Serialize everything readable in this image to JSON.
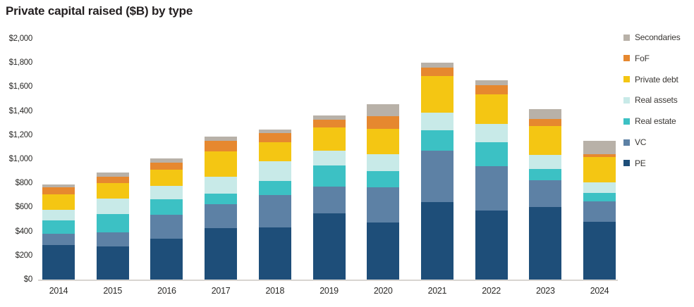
{
  "chart_data": {
    "type": "bar",
    "variant": "stacked-vertical",
    "title": "Private capital raised ($B) by type",
    "xlabel": "",
    "ylabel": "",
    "ylim": [
      0,
      2000
    ],
    "grid": false,
    "legend_position": "right",
    "categories": [
      "2014",
      "2015",
      "2016",
      "2017",
      "2018",
      "2019",
      "2020",
      "2021",
      "2022",
      "2023",
      "2024"
    ],
    "series": [
      {
        "name": "PE",
        "color": "#1e4e79",
        "values": [
          285,
          275,
          340,
          425,
          430,
          550,
          475,
          645,
          575,
          600,
          480
        ]
      },
      {
        "name": "VC",
        "color": "#5d81a5",
        "values": [
          95,
          115,
          200,
          200,
          270,
          220,
          290,
          425,
          365,
          225,
          170
        ]
      },
      {
        "name": "Real estate",
        "color": "#3cc1c4",
        "values": [
          110,
          155,
          125,
          90,
          120,
          175,
          135,
          170,
          200,
          95,
          70
        ]
      },
      {
        "name": "Real assets",
        "color": "#c8eae8",
        "values": [
          90,
          125,
          110,
          140,
          160,
          125,
          140,
          145,
          150,
          115,
          85
        ]
      },
      {
        "name": "Private debt",
        "color": "#f4c613",
        "values": [
          125,
          130,
          140,
          210,
          160,
          195,
          210,
          305,
          250,
          240,
          210
        ]
      },
      {
        "name": "FoF",
        "color": "#e6882f",
        "values": [
          60,
          55,
          55,
          85,
          75,
          65,
          105,
          70,
          75,
          60,
          25
        ]
      },
      {
        "name": "Secondaries",
        "color": "#b8b1a8",
        "values": [
          25,
          35,
          35,
          40,
          30,
          30,
          100,
          40,
          40,
          80,
          110
        ]
      }
    ],
    "totals": [
      790,
      890,
      1005,
      1190,
      1245,
      1360,
      1455,
      1800,
      1655,
      1415,
      1150
    ],
    "y_ticks": [
      {
        "value": 0,
        "label": "$0"
      },
      {
        "value": 200,
        "label": "$200"
      },
      {
        "value": 400,
        "label": "$400"
      },
      {
        "value": 600,
        "label": "$600"
      },
      {
        "value": 800,
        "label": "$800"
      },
      {
        "value": 1000,
        "label": "$1,000"
      },
      {
        "value": 1200,
        "label": "$1,200"
      },
      {
        "value": 1400,
        "label": "$1,400"
      },
      {
        "value": 1600,
        "label": "$1,600"
      },
      {
        "value": 1800,
        "label": "$1,800"
      },
      {
        "value": 2000,
        "label": "$2,000"
      }
    ],
    "legend": [
      {
        "label": "Secondaries",
        "color": "#b8b1a8"
      },
      {
        "label": "FoF",
        "color": "#e6882f"
      },
      {
        "label": "Private debt",
        "color": "#f4c613"
      },
      {
        "label": "Real assets",
        "color": "#c8eae8"
      },
      {
        "label": "Real estate",
        "color": "#3cc1c4"
      },
      {
        "label": "VC",
        "color": "#5d81a5"
      },
      {
        "label": "PE",
        "color": "#1e4e79"
      }
    ]
  }
}
